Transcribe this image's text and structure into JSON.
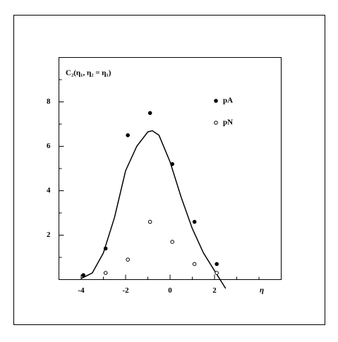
{
  "chart_data": {
    "type": "scatter",
    "title": "C₂(η₁, η₂ = η₁)",
    "x_label": "η",
    "xlim": [
      -5,
      5
    ],
    "xticks": [
      -4,
      -2,
      0,
      2
    ],
    "xminorticks": [
      -3,
      -1,
      1,
      3,
      4
    ],
    "ylim": [
      0,
      10
    ],
    "yticks": [
      2,
      4,
      6,
      8
    ],
    "yminorticks": [
      1,
      3,
      5,
      7,
      9
    ],
    "series": [
      {
        "name": "pA",
        "marker": "filled",
        "color": "#000000",
        "x": [
          -3.9,
          -2.9,
          -1.9,
          -0.9,
          0.1,
          1.1,
          2.1
        ],
        "values": [
          0.2,
          1.4,
          6.5,
          7.5,
          5.2,
          2.6,
          0.7
        ]
      },
      {
        "name": "pN",
        "marker": "open",
        "color": "#000000",
        "x": [
          -2.9,
          -1.9,
          -0.9,
          0.1,
          1.1,
          2.1
        ],
        "values": [
          0.3,
          0.9,
          2.6,
          1.7,
          0.7,
          0.3
        ]
      }
    ],
    "curve": {
      "color": "#000000",
      "x": [
        -4.0,
        -3.5,
        -3.0,
        -2.5,
        -2.0,
        -1.5,
        -1.0,
        -0.8,
        -0.5,
        0.0,
        0.5,
        1.0,
        1.5,
        2.0,
        2.5
      ],
      "values": [
        0.05,
        0.3,
        1.2,
        2.8,
        4.9,
        6.0,
        6.65,
        6.7,
        6.5,
        5.3,
        3.7,
        2.3,
        1.2,
        0.4,
        -0.4
      ]
    }
  }
}
